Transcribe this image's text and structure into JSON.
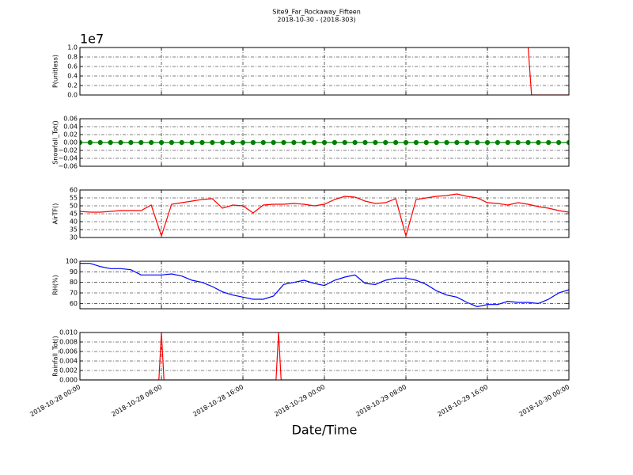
{
  "chart_data": [
    {
      "type": "line",
      "title": "Site9_Far_Rockaway_Fifteen",
      "subtitle": "2018-10-30 - (2018-303)",
      "ylabel": "P(unitless)",
      "offset_label": "1e7",
      "color": "#ff0000",
      "x": [
        "2018-10-29 20:00",
        "2018-10-29 20:20",
        "2018-10-30 00:00"
      ],
      "values": [
        1.0,
        0.0,
        0.0
      ],
      "xlim": [
        "2018-10-28 00:00",
        "2018-10-30 00:00"
      ],
      "xticks": [
        "2018-10-28 00:00",
        "2018-10-28 08:00",
        "2018-10-28 16:00",
        "2018-10-29 00:00",
        "2018-10-29 08:00",
        "2018-10-29 16:00",
        "2018-10-30 00:00"
      ],
      "ylim": [
        0,
        1.0
      ],
      "yticks": [
        {
          "value": 0,
          "label": "0.0"
        },
        0.2,
        0.4,
        0.6,
        0.8,
        {
          "value": 1.0,
          "label": "1.0"
        }
      ],
      "grid": true
    },
    {
      "type": "line",
      "ylabel": "Snowfall_Tot()",
      "color": "#008000",
      "marker": "o",
      "x": [
        "2018-10-28 00:00",
        "2018-10-28 01:00",
        "2018-10-28 02:00",
        "2018-10-28 03:00",
        "2018-10-28 04:00",
        "2018-10-28 05:00",
        "2018-10-28 06:00",
        "2018-10-28 07:00",
        "2018-10-28 08:00",
        "2018-10-28 09:00",
        "2018-10-28 10:00",
        "2018-10-28 11:00",
        "2018-10-28 12:00",
        "2018-10-28 13:00",
        "2018-10-28 14:00",
        "2018-10-28 15:00",
        "2018-10-28 16:00",
        "2018-10-28 17:00",
        "2018-10-28 18:00",
        "2018-10-28 19:00",
        "2018-10-28 20:00",
        "2018-10-28 21:00",
        "2018-10-28 22:00",
        "2018-10-28 23:00",
        "2018-10-29 00:00",
        "2018-10-29 01:00",
        "2018-10-29 02:00",
        "2018-10-29 03:00",
        "2018-10-29 04:00",
        "2018-10-29 05:00",
        "2018-10-29 06:00",
        "2018-10-29 07:00",
        "2018-10-29 08:00",
        "2018-10-29 09:00",
        "2018-10-29 10:00",
        "2018-10-29 11:00",
        "2018-10-29 12:00",
        "2018-10-29 13:00",
        "2018-10-29 14:00",
        "2018-10-29 15:00",
        "2018-10-29 16:00",
        "2018-10-29 17:00",
        "2018-10-29 18:00",
        "2018-10-29 19:00",
        "2018-10-29 20:00",
        "2018-10-29 21:00",
        "2018-10-29 22:00",
        "2018-10-29 23:00",
        "2018-10-30 00:00"
      ],
      "values": [
        0,
        0,
        0,
        0,
        0,
        0,
        0,
        0,
        0,
        0,
        0,
        0,
        0,
        0,
        0,
        0,
        0,
        0,
        0,
        0,
        0,
        0,
        0,
        0,
        0,
        0,
        0,
        0,
        0,
        0,
        0,
        0,
        0,
        0,
        0,
        0,
        0,
        0,
        0,
        0,
        0,
        0,
        0,
        0,
        0,
        0,
        0,
        0,
        0
      ],
      "xlim": [
        "2018-10-28 00:00",
        "2018-10-30 00:00"
      ],
      "xticks": [
        "2018-10-28 00:00",
        "2018-10-28 08:00",
        "2018-10-28 16:00",
        "2018-10-29 00:00",
        "2018-10-29 08:00",
        "2018-10-29 16:00",
        "2018-10-30 00:00"
      ],
      "ylim": [
        -0.06,
        0.06
      ],
      "yticks": [
        {
          "value": -0.06,
          "label": "−0.06"
        },
        {
          "value": -0.04,
          "label": "−0.04"
        },
        {
          "value": -0.02,
          "label": "−0.02"
        },
        {
          "value": 0,
          "label": "0.00"
        },
        0.02,
        0.04,
        0.06
      ],
      "grid": true
    },
    {
      "type": "line",
      "ylabel": "AirTF()",
      "color": "#ff0000",
      "x": [
        "2018-10-28 00:00",
        "2018-10-28 01:00",
        "2018-10-28 02:00",
        "2018-10-28 03:00",
        "2018-10-28 04:00",
        "2018-10-28 05:00",
        "2018-10-28 06:00",
        "2018-10-28 07:00",
        "2018-10-28 08:00",
        "2018-10-28 09:00",
        "2018-10-28 10:00",
        "2018-10-28 11:00",
        "2018-10-28 12:00",
        "2018-10-28 13:00",
        "2018-10-28 14:00",
        "2018-10-28 15:00",
        "2018-10-28 16:00",
        "2018-10-28 17:00",
        "2018-10-28 18:00",
        "2018-10-28 19:00",
        "2018-10-28 20:00",
        "2018-10-28 21:00",
        "2018-10-28 22:00",
        "2018-10-28 23:00",
        "2018-10-29 00:00",
        "2018-10-29 01:00",
        "2018-10-29 02:00",
        "2018-10-29 03:00",
        "2018-10-29 04:00",
        "2018-10-29 05:00",
        "2018-10-29 06:00",
        "2018-10-29 07:00",
        "2018-10-29 08:00",
        "2018-10-29 09:00",
        "2018-10-29 10:00",
        "2018-10-29 11:00",
        "2018-10-29 12:00",
        "2018-10-29 13:00",
        "2018-10-29 14:00",
        "2018-10-29 15:00",
        "2018-10-29 16:00",
        "2018-10-29 17:00",
        "2018-10-29 18:00",
        "2018-10-29 19:00",
        "2018-10-29 20:00",
        "2018-10-29 21:00",
        "2018-10-29 22:00",
        "2018-10-29 23:00",
        "2018-10-30 00:00"
      ],
      "values": [
        46.5,
        46,
        46,
        46.5,
        47,
        47,
        47,
        50.5,
        31,
        51,
        52,
        53,
        54,
        54.5,
        48.5,
        50.5,
        50,
        45.5,
        50.5,
        51,
        51,
        51.5,
        51,
        50,
        51,
        54,
        56,
        55.5,
        53,
        51.5,
        52,
        54.5,
        31,
        54,
        55,
        56,
        56.5,
        57.5,
        56,
        55,
        52,
        51.5,
        50.5,
        52,
        51,
        49.5,
        48.5,
        47,
        46
      ],
      "xlim": [
        "2018-10-28 00:00",
        "2018-10-30 00:00"
      ],
      "xticks": [
        "2018-10-28 00:00",
        "2018-10-28 08:00",
        "2018-10-28 16:00",
        "2018-10-29 00:00",
        "2018-10-29 08:00",
        "2018-10-29 16:00",
        "2018-10-30 00:00"
      ],
      "ylim": [
        30,
        60
      ],
      "yticks": [
        30,
        35,
        40,
        45,
        50,
        55,
        60
      ],
      "grid": true
    },
    {
      "type": "line",
      "ylabel": "RH(%)",
      "color": "#0000ff",
      "x": [
        "2018-10-28 00:00",
        "2018-10-28 01:00",
        "2018-10-28 02:00",
        "2018-10-28 03:00",
        "2018-10-28 04:00",
        "2018-10-28 05:00",
        "2018-10-28 06:00",
        "2018-10-28 07:00",
        "2018-10-28 08:00",
        "2018-10-28 09:00",
        "2018-10-28 10:00",
        "2018-10-28 11:00",
        "2018-10-28 12:00",
        "2018-10-28 13:00",
        "2018-10-28 14:00",
        "2018-10-28 15:00",
        "2018-10-28 16:00",
        "2018-10-28 17:00",
        "2018-10-28 18:00",
        "2018-10-28 19:00",
        "2018-10-28 20:00",
        "2018-10-28 21:00",
        "2018-10-28 22:00",
        "2018-10-28 23:00",
        "2018-10-29 00:00",
        "2018-10-29 01:00",
        "2018-10-29 02:00",
        "2018-10-29 03:00",
        "2018-10-29 04:00",
        "2018-10-29 05:00",
        "2018-10-29 06:00",
        "2018-10-29 07:00",
        "2018-10-29 08:00",
        "2018-10-29 09:00",
        "2018-10-29 10:00",
        "2018-10-29 11:00",
        "2018-10-29 12:00",
        "2018-10-29 13:00",
        "2018-10-29 14:00",
        "2018-10-29 15:00",
        "2018-10-29 16:00",
        "2018-10-29 17:00",
        "2018-10-29 18:00",
        "2018-10-29 19:00",
        "2018-10-29 20:00",
        "2018-10-29 21:00",
        "2018-10-29 22:00",
        "2018-10-29 23:00",
        "2018-10-30 00:00"
      ],
      "values": [
        98,
        98,
        95,
        93,
        93,
        92,
        87,
        87,
        87,
        88,
        86,
        82,
        80,
        76,
        71,
        68,
        66,
        64,
        64,
        67,
        78,
        80,
        82,
        79,
        77,
        82,
        85,
        87,
        79,
        78,
        82,
        84,
        84,
        82,
        78,
        72,
        68,
        66,
        61,
        57,
        59,
        59,
        62,
        61,
        61,
        60,
        64,
        70,
        73
      ],
      "xlim": [
        "2018-10-28 00:00",
        "2018-10-30 00:00"
      ],
      "xticks": [
        "2018-10-28 00:00",
        "2018-10-28 08:00",
        "2018-10-28 16:00",
        "2018-10-29 00:00",
        "2018-10-29 08:00",
        "2018-10-29 16:00",
        "2018-10-30 00:00"
      ],
      "ylim": [
        55,
        100
      ],
      "yticks": [
        60,
        70,
        80,
        90,
        100
      ],
      "grid": true
    },
    {
      "type": "line",
      "ylabel": "Rainfall_Tot()",
      "xlabel": "Date/Time",
      "color": "#ff0000",
      "x": [
        "2018-10-28 00:00",
        "2018-10-28 07:45",
        "2018-10-28 08:00",
        "2018-10-28 08:15",
        "2018-10-28 19:15",
        "2018-10-28 19:30",
        "2018-10-28 19:45",
        "2018-10-30 00:00"
      ],
      "values": [
        0,
        0,
        0.01,
        0,
        0,
        0.01,
        0,
        0
      ],
      "xlim": [
        "2018-10-28 00:00",
        "2018-10-30 00:00"
      ],
      "xticks": [
        "2018-10-28 00:00",
        "2018-10-28 08:00",
        "2018-10-28 16:00",
        "2018-10-29 00:00",
        "2018-10-29 08:00",
        "2018-10-29 16:00",
        "2018-10-30 00:00"
      ],
      "ylim": [
        0,
        0.01
      ],
      "yticks": [
        {
          "value": 0,
          "label": "0.000"
        },
        {
          "value": 0.002,
          "label": "0.002"
        },
        {
          "value": 0.004,
          "label": "0.004"
        },
        {
          "value": 0.006,
          "label": "0.006"
        },
        {
          "value": 0.008,
          "label": "0.008"
        },
        {
          "value": 0.01,
          "label": "0.010"
        }
      ],
      "grid": true
    }
  ]
}
